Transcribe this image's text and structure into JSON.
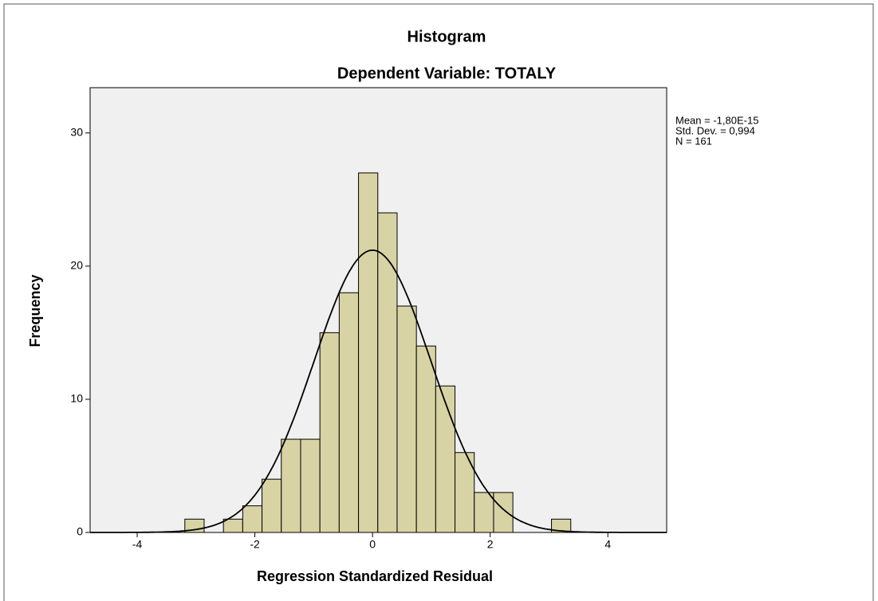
{
  "chart_data": {
    "type": "histogram",
    "title": "Histogram",
    "subtitle": "Dependent Variable: TOTALY",
    "x_label": "Regression Standardized Residual",
    "y_label": "Frequency",
    "bins": [
      -3.19,
      -2.862,
      -2.534,
      -2.206,
      -1.878,
      -1.55,
      -1.222,
      -0.894,
      -0.566,
      -0.238,
      0.09,
      0.418,
      0.746,
      1.074,
      1.402,
      1.73,
      2.058,
      2.386,
      2.714,
      3.042,
      3.37
    ],
    "values": [
      1,
      0,
      1,
      2,
      4,
      7,
      7,
      15,
      18,
      27,
      24,
      17,
      14,
      11,
      6,
      3,
      3,
      0,
      0,
      1
    ],
    "color": "#d8d3a4",
    "xlim": [
      -4.8,
      5.0
    ],
    "ylim": [
      0,
      33.4
    ],
    "xticks": [
      -4,
      -2,
      0,
      2,
      4
    ],
    "yticks": [
      0,
      10,
      20,
      30
    ],
    "annotations": [
      "Mean = -1,80E-15",
      "Std. Dev. = 0,994",
      "N = 161"
    ],
    "normal_curve": {
      "mean": -1.8e-15,
      "sd": 0.994,
      "n": 161
    }
  }
}
